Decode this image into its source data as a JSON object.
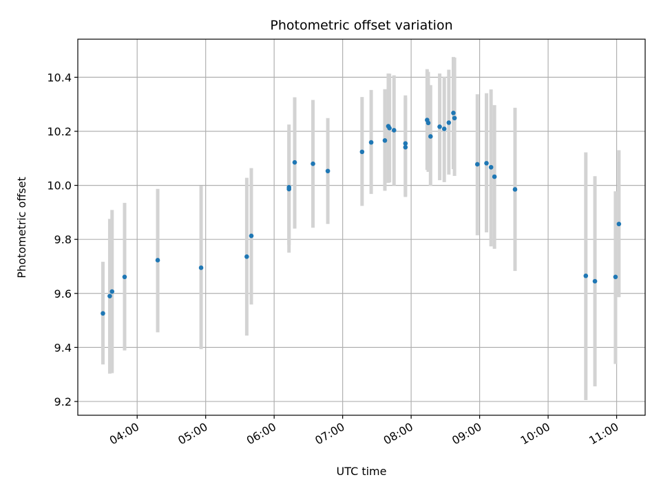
{
  "chart_data": {
    "type": "scatter",
    "title": "Photometric offset variation",
    "xlabel": "UTC time",
    "ylabel": "Photometric offset",
    "xlim": [
      "03:08",
      "11:25"
    ],
    "ylim": [
      9.149,
      10.541
    ],
    "grid": true,
    "x_ticks": [
      "04:00",
      "05:00",
      "06:00",
      "07:00",
      "08:00",
      "09:00",
      "10:00",
      "11:00"
    ],
    "y_ticks": [
      "9.2",
      "9.4",
      "9.6",
      "9.8",
      "10.0",
      "10.2",
      "10.4"
    ],
    "colors": {
      "point": "#1f77b4",
      "errorbar": "#d3d3d3",
      "grid": "#b0b0b0"
    },
    "series": [
      {
        "points": [
          {
            "x": "03:30",
            "y": 9.526,
            "ylo": 9.337,
            "yhi": 9.717
          },
          {
            "x": "03:36",
            "y": 9.59,
            "ylo": 9.303,
            "yhi": 9.876
          },
          {
            "x": "03:38",
            "y": 9.607,
            "ylo": 9.305,
            "yhi": 9.909
          },
          {
            "x": "03:49",
            "y": 9.661,
            "ylo": 9.389,
            "yhi": 9.935
          },
          {
            "x": "04:18",
            "y": 9.723,
            "ylo": 9.456,
            "yhi": 9.987
          },
          {
            "x": "04:56",
            "y": 9.695,
            "ylo": 9.394,
            "yhi": 9.999
          },
          {
            "x": "05:36",
            "y": 9.736,
            "ylo": 9.444,
            "yhi": 10.028
          },
          {
            "x": "05:40",
            "y": 9.813,
            "ylo": 9.559,
            "yhi": 10.064
          },
          {
            "x": "06:13",
            "y": 9.986,
            "ylo": 9.751,
            "yhi": 10.225
          },
          {
            "x": "06:13",
            "y": 9.993,
            "ylo": 9.78,
            "yhi": 10.2
          },
          {
            "x": "06:18",
            "y": 10.085,
            "ylo": 9.84,
            "yhi": 10.326
          },
          {
            "x": "06:34",
            "y": 10.08,
            "ylo": 9.843,
            "yhi": 10.316
          },
          {
            "x": "06:47",
            "y": 10.053,
            "ylo": 9.857,
            "yhi": 10.249
          },
          {
            "x": "07:17",
            "y": 10.124,
            "ylo": 9.924,
            "yhi": 10.327
          },
          {
            "x": "07:25",
            "y": 10.159,
            "ylo": 9.968,
            "yhi": 10.353
          },
          {
            "x": "07:37",
            "y": 10.166,
            "ylo": 9.98,
            "yhi": 10.356
          },
          {
            "x": "07:40",
            "y": 10.219,
            "ylo": 10.009,
            "yhi": 10.414
          },
          {
            "x": "07:41",
            "y": 10.212,
            "ylo": 10.011,
            "yhi": 10.413
          },
          {
            "x": "07:45",
            "y": 10.204,
            "ylo": 10.0,
            "yhi": 10.407
          },
          {
            "x": "07:55",
            "y": 10.155,
            "ylo": 9.96,
            "yhi": 10.333
          },
          {
            "x": "07:55",
            "y": 10.141,
            "ylo": 9.957,
            "yhi": 10.325
          },
          {
            "x": "08:14",
            "y": 10.242,
            "ylo": 10.057,
            "yhi": 10.43
          },
          {
            "x": "08:15",
            "y": 10.231,
            "ylo": 10.05,
            "yhi": 10.42
          },
          {
            "x": "08:17",
            "y": 10.181,
            "ylo": 9.998,
            "yhi": 10.371
          },
          {
            "x": "08:25",
            "y": 10.217,
            "ylo": 10.019,
            "yhi": 10.414
          },
          {
            "x": "08:29",
            "y": 10.209,
            "ylo": 10.012,
            "yhi": 10.402
          },
          {
            "x": "08:33",
            "y": 10.232,
            "ylo": 10.04,
            "yhi": 10.428
          },
          {
            "x": "08:37",
            "y": 10.268,
            "ylo": 10.06,
            "yhi": 10.475
          },
          {
            "x": "08:38",
            "y": 10.249,
            "ylo": 10.035,
            "yhi": 10.473
          },
          {
            "x": "08:58",
            "y": 10.078,
            "ylo": 9.815,
            "yhi": 10.337
          },
          {
            "x": "09:06",
            "y": 10.082,
            "ylo": 9.826,
            "yhi": 10.341
          },
          {
            "x": "09:10",
            "y": 10.067,
            "ylo": 9.774,
            "yhi": 10.355
          },
          {
            "x": "09:13",
            "y": 10.032,
            "ylo": 9.765,
            "yhi": 10.297
          },
          {
            "x": "09:31",
            "y": 9.985,
            "ylo": 9.683,
            "yhi": 10.287
          },
          {
            "x": "10:33",
            "y": 9.665,
            "ylo": 9.205,
            "yhi": 10.122
          },
          {
            "x": "10:41",
            "y": 9.645,
            "ylo": 9.256,
            "yhi": 10.034
          },
          {
            "x": "10:59",
            "y": 9.661,
            "ylo": 9.339,
            "yhi": 9.978
          },
          {
            "x": "11:02",
            "y": 9.857,
            "ylo": 9.586,
            "yhi": 10.13
          }
        ]
      }
    ]
  }
}
